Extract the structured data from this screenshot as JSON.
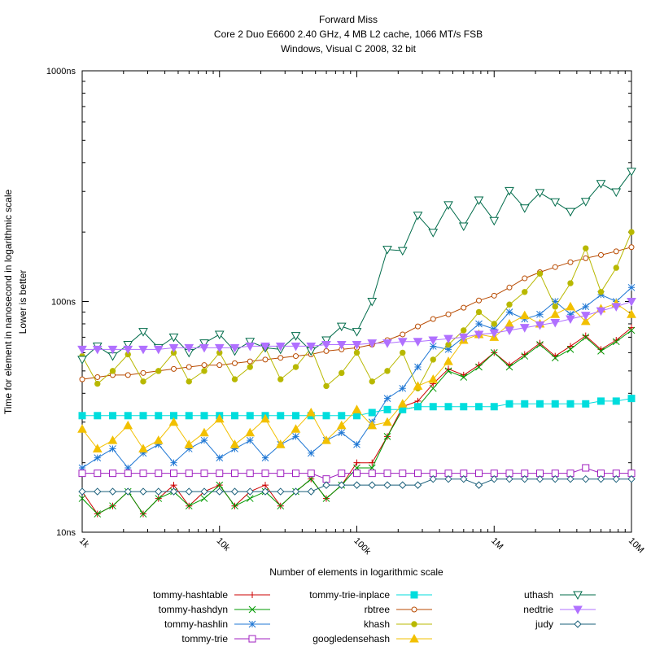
{
  "chart_data": {
    "type": "line",
    "title": "Forward Miss",
    "subtitle_lines": [
      "Core 2 Duo E6600 2.40 GHz, 4 MB L2 cache, 1066 MT/s FSB",
      "Windows, Visual C 2008, 32 bit"
    ],
    "xlabel": "Number of elements in logarithmic scale",
    "ylabel": "Time for element in nanosecond in logarithmic scale",
    "ylabel2": "Lower is better",
    "x_scale": "log",
    "y_scale": "log",
    "xlim": [
      1000,
      10000000
    ],
    "ylim": [
      10,
      1000
    ],
    "x_ticks": [
      {
        "value": 1000,
        "label": "1k"
      },
      {
        "value": 10000,
        "label": "10k"
      },
      {
        "value": 100000,
        "label": "100k"
      },
      {
        "value": 1000000,
        "label": "1M"
      },
      {
        "value": 10000000,
        "label": "10M"
      }
    ],
    "y_ticks": [
      {
        "value": 10,
        "label": "10ns"
      },
      {
        "value": 100,
        "label": "100ns"
      },
      {
        "value": 1000,
        "label": "1000ns"
      }
    ],
    "grid": false,
    "legend_position": "bottom",
    "x_points": 37,
    "series": [
      {
        "name": "tommy-hashtable",
        "color": "#cc0000",
        "marker": "plus",
        "values": [
          15,
          12,
          13,
          15,
          12,
          14,
          16,
          13,
          15,
          16,
          13,
          15,
          16,
          13,
          15,
          17,
          14,
          16,
          20,
          20,
          26,
          35,
          37,
          44,
          51,
          48,
          53,
          60,
          53,
          59,
          66,
          58,
          64,
          71,
          62,
          68,
          77
        ]
      },
      {
        "name": "tommy-hashdyn",
        "color": "#009900",
        "marker": "cross",
        "values": [
          14,
          12,
          13,
          15,
          12,
          14,
          15,
          13,
          14,
          16,
          13,
          14,
          15,
          13,
          15,
          17,
          14,
          16,
          19,
          19,
          26,
          34,
          35,
          42,
          50,
          47,
          52,
          60,
          52,
          58,
          65,
          57,
          62,
          70,
          61,
          67,
          75
        ]
      },
      {
        "name": "tommy-hashlin",
        "color": "#1f77d4",
        "marker": "star",
        "values": [
          19,
          21,
          23,
          19,
          22,
          24,
          20,
          23,
          25,
          21,
          23,
          25,
          21,
          24,
          26,
          22,
          25,
          27,
          24,
          30,
          38,
          42,
          52,
          64,
          62,
          70,
          80,
          76,
          90,
          84,
          88,
          100,
          88,
          95,
          107,
          100,
          115
        ]
      },
      {
        "name": "tommy-trie",
        "color": "#a020c0",
        "marker": "square",
        "values": [
          18,
          18,
          18,
          18,
          18,
          18,
          18,
          18,
          18,
          18,
          18,
          18,
          18,
          18,
          18,
          18,
          17,
          18,
          18,
          18,
          18,
          18,
          18,
          18,
          18,
          18,
          18,
          18,
          18,
          18,
          18,
          18,
          18,
          19,
          18,
          18,
          18
        ]
      },
      {
        "name": "tommy-trie-inplace",
        "color": "#00dddd",
        "marker": "filled-square",
        "values": [
          32,
          32,
          32,
          32,
          32,
          32,
          32,
          32,
          32,
          32,
          32,
          32,
          32,
          32,
          32,
          32,
          32,
          32,
          32,
          33,
          34,
          34,
          35,
          35,
          35,
          35,
          35,
          35,
          36,
          36,
          36,
          36,
          36,
          36,
          37,
          37,
          38
        ]
      },
      {
        "name": "rbtree",
        "color": "#b84a00",
        "marker": "circle",
        "values": [
          46,
          47,
          48,
          48,
          49,
          50,
          51,
          52,
          53,
          53,
          54,
          55,
          56,
          57,
          58,
          59,
          61,
          62,
          63,
          65,
          68,
          72,
          78,
          84,
          88,
          94,
          101,
          106,
          115,
          126,
          134,
          141,
          148,
          154,
          159,
          165,
          172
        ]
      },
      {
        "name": "khash",
        "color": "#b8b800",
        "marker": "filled-circle",
        "values": [
          58,
          44,
          50,
          59,
          45,
          50,
          60,
          45,
          50,
          60,
          46,
          52,
          63,
          46,
          52,
          63,
          43,
          49,
          60,
          45,
          50,
          60,
          42,
          56,
          65,
          75,
          90,
          80,
          97,
          110,
          132,
          95,
          120,
          170,
          110,
          140,
          200
        ]
      },
      {
        "name": "googledensehash",
        "color": "#f2c000",
        "marker": "filled-triangle",
        "values": [
          28,
          23,
          25,
          29,
          23,
          25,
          30,
          24,
          27,
          31,
          24,
          27,
          31,
          24,
          28,
          33,
          25,
          29,
          34,
          29,
          30,
          36,
          43,
          46,
          55,
          68,
          72,
          70,
          80,
          87,
          80,
          88,
          95,
          82,
          93,
          98,
          88
        ]
      },
      {
        "name": "uthash",
        "color": "#006b4a",
        "marker": "triangle-down",
        "values": [
          56,
          64,
          58,
          65,
          74,
          63,
          70,
          60,
          66,
          72,
          61,
          67,
          63,
          62,
          71,
          61,
          68,
          78,
          74,
          100,
          168,
          166,
          236,
          199,
          262,
          212,
          275,
          224,
          302,
          254,
          296,
          270,
          245,
          271,
          324,
          298,
          366
        ]
      },
      {
        "name": "nedtrie",
        "color": "#b070ff",
        "marker": "filled-triangle-down",
        "values": [
          62,
          62,
          62,
          62,
          62,
          62,
          63,
          63,
          63,
          63,
          63,
          64,
          64,
          64,
          64,
          64,
          65,
          65,
          65,
          66,
          66,
          67,
          67,
          68,
          69,
          70,
          72,
          73,
          75,
          77,
          79,
          81,
          84,
          87,
          91,
          95,
          100
        ]
      },
      {
        "name": "judy",
        "color": "#1a5f7a",
        "marker": "diamond",
        "values": [
          15,
          15,
          15,
          15,
          15,
          15,
          15,
          15,
          15,
          15,
          15,
          15,
          15,
          15,
          15,
          15,
          16,
          16,
          16,
          16,
          16,
          16,
          16,
          17,
          17,
          17,
          16,
          17,
          17,
          17,
          17,
          17,
          17,
          17,
          17,
          17,
          17
        ]
      }
    ]
  }
}
